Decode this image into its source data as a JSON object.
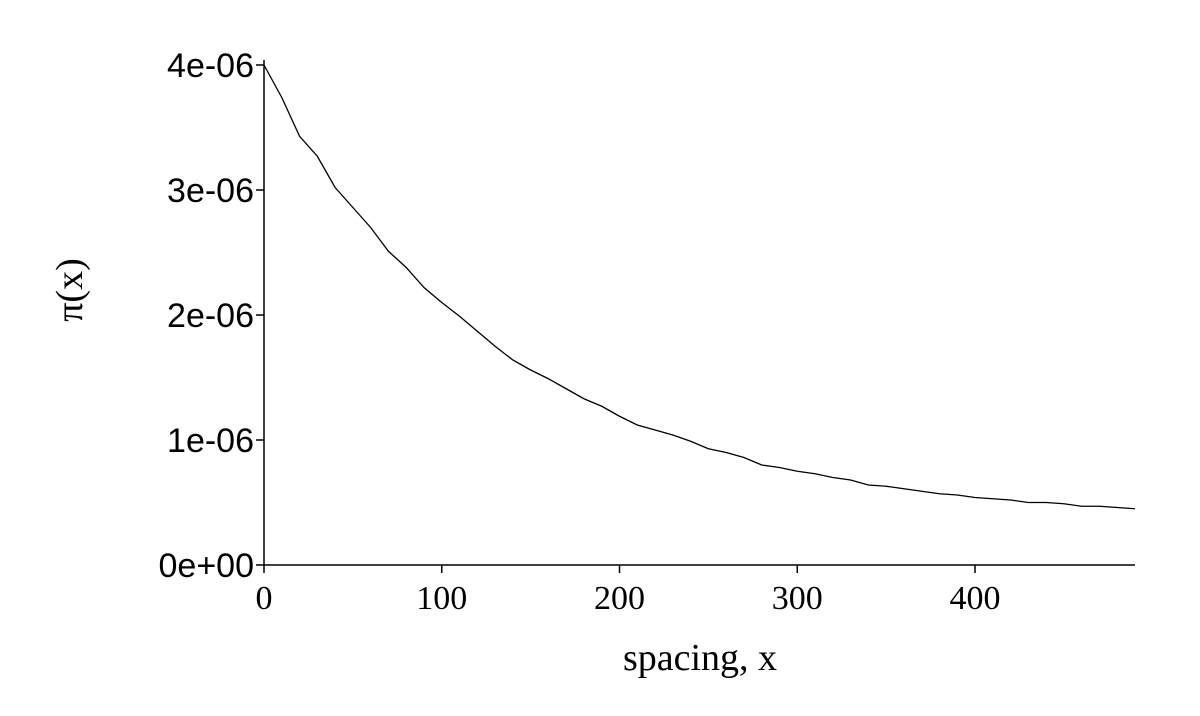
{
  "chart_data": {
    "type": "line",
    "xlabel": "spacing, x",
    "ylabel": "π(x)",
    "x": [
      0,
      10,
      20,
      30,
      40,
      50,
      60,
      70,
      80,
      90,
      100,
      110,
      120,
      130,
      140,
      150,
      160,
      170,
      180,
      190,
      200,
      210,
      220,
      230,
      240,
      250,
      260,
      270,
      280,
      290,
      300,
      310,
      320,
      330,
      340,
      350,
      360,
      370,
      380,
      390,
      400,
      410,
      420,
      430,
      440,
      450,
      460,
      470,
      480,
      490
    ],
    "series": [
      {
        "name": "π(x)",
        "color": "#000000",
        "values": [
          4e-06,
          3.74e-06,
          3.43e-06,
          3.27e-06,
          3.02e-06,
          2.86e-06,
          2.7e-06,
          2.51e-06,
          2.38e-06,
          2.22e-06,
          2.1e-06,
          1.99e-06,
          1.87e-06,
          1.75e-06,
          1.64e-06,
          1.56e-06,
          1.49e-06,
          1.41e-06,
          1.33e-06,
          1.27e-06,
          1.19e-06,
          1.12e-06,
          1.08e-06,
          1.04e-06,
          9.9e-07,
          9.3e-07,
          9e-07,
          8.6e-07,
          8e-07,
          7.8e-07,
          7.5e-07,
          7.3e-07,
          7e-07,
          6.8e-07,
          6.4e-07,
          6.3e-07,
          6.1e-07,
          5.9e-07,
          5.7e-07,
          5.6e-07,
          5.4e-07,
          5.3e-07,
          5.2e-07,
          5e-07,
          5e-07,
          4.9e-07,
          4.7e-07,
          4.7e-07,
          4.6e-07,
          4.5e-07
        ]
      }
    ],
    "xlim": [
      0,
      490
    ],
    "ylim": [
      0,
      4e-06
    ],
    "xticks": [
      0,
      100,
      200,
      300,
      400
    ],
    "yticks": [
      {
        "value": 0,
        "label": "0e+00"
      },
      {
        "value": 1e-06,
        "label": "1e-06"
      },
      {
        "value": 2e-06,
        "label": "2e-06"
      },
      {
        "value": 3e-06,
        "label": "3e-06"
      },
      {
        "value": 4e-06,
        "label": "4e-06"
      }
    ],
    "grid": false
  }
}
